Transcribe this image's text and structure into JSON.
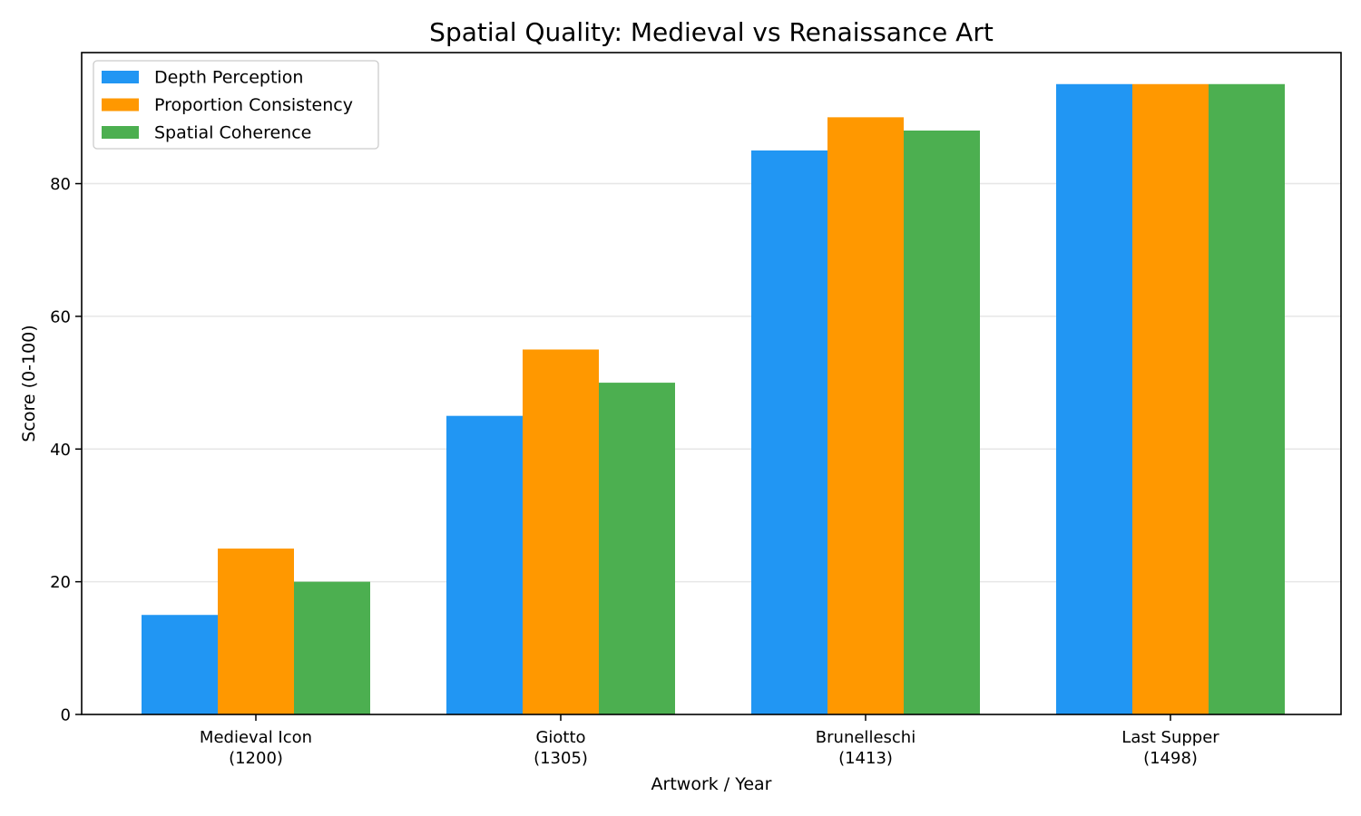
{
  "chart_data": {
    "type": "bar",
    "title": "Spatial Quality: Medieval vs Renaissance Art",
    "xlabel": "Artwork / Year",
    "ylabel": "Score (0-100)",
    "categories": [
      [
        "Medieval Icon",
        "(1200)"
      ],
      [
        "Giotto",
        "(1305)"
      ],
      [
        "Brunelleschi",
        "(1413)"
      ],
      [
        "Last Supper",
        "(1498)"
      ]
    ],
    "series": [
      {
        "name": "Depth Perception",
        "color": "#2196F3",
        "values": [
          15,
          45,
          85,
          95
        ]
      },
      {
        "name": "Proportion Consistency",
        "color": "#FF9800",
        "values": [
          25,
          55,
          90,
          95
        ]
      },
      {
        "name": "Spatial Coherence",
        "color": "#4CAF50",
        "values": [
          20,
          50,
          88,
          95
        ]
      }
    ],
    "ylim": [
      0,
      99.75
    ],
    "yticks": [
      0,
      20,
      40,
      60,
      80
    ],
    "grid": "y",
    "legend_position": "top-left"
  }
}
